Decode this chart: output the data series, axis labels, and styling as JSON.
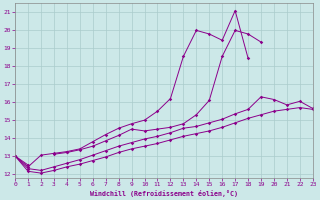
{
  "title": "",
  "xlabel": "Windchill (Refroidissement éolien,°C)",
  "ylabel": "",
  "x_values": [
    0,
    1,
    2,
    3,
    4,
    5,
    6,
    7,
    8,
    9,
    10,
    11,
    12,
    13,
    14,
    15,
    16,
    17,
    18,
    19,
    20,
    21,
    22,
    23
  ],
  "line_color": "#8B008B",
  "bg_color": "#cce8e8",
  "grid_color": "#aacccc",
  "xlim": [
    0,
    23
  ],
  "ylim": [
    11.8,
    21.5
  ],
  "yticks": [
    12,
    13,
    14,
    15,
    16,
    17,
    18,
    19,
    20,
    21
  ],
  "xticks": [
    0,
    1,
    2,
    3,
    4,
    5,
    6,
    7,
    8,
    9,
    10,
    11,
    12,
    13,
    14,
    15,
    16,
    17,
    18,
    19,
    20,
    21,
    22,
    23
  ],
  "line1_y": [
    13.0,
    12.5,
    null,
    13.1,
    13.2,
    13.35,
    13.55,
    13.85,
    14.15,
    14.5,
    14.4,
    14.5,
    14.6,
    14.8,
    15.3,
    16.1,
    18.55,
    20.0,
    19.8,
    19.35,
    null,
    null,
    null,
    null
  ],
  "line2_y": [
    13.0,
    12.4,
    13.05,
    13.15,
    13.25,
    13.4,
    13.8,
    14.2,
    14.55,
    14.8,
    15.0,
    15.5,
    16.2,
    18.55,
    20.0,
    19.8,
    19.45,
    21.1,
    18.45,
    null,
    null,
    null,
    null,
    null
  ],
  "line3_y": [
    13.0,
    12.3,
    12.2,
    12.4,
    12.6,
    12.8,
    13.05,
    13.3,
    13.55,
    13.75,
    13.95,
    14.1,
    14.3,
    14.55,
    14.65,
    14.85,
    15.05,
    15.35,
    15.6,
    16.3,
    16.15,
    15.85,
    16.05,
    15.65
  ],
  "line4_y": [
    13.0,
    12.15,
    12.05,
    12.2,
    12.4,
    12.55,
    12.75,
    12.95,
    13.2,
    13.4,
    13.55,
    13.7,
    13.9,
    14.1,
    14.25,
    14.4,
    14.6,
    14.85,
    15.1,
    15.3,
    15.5,
    15.6,
    15.7,
    15.6
  ]
}
